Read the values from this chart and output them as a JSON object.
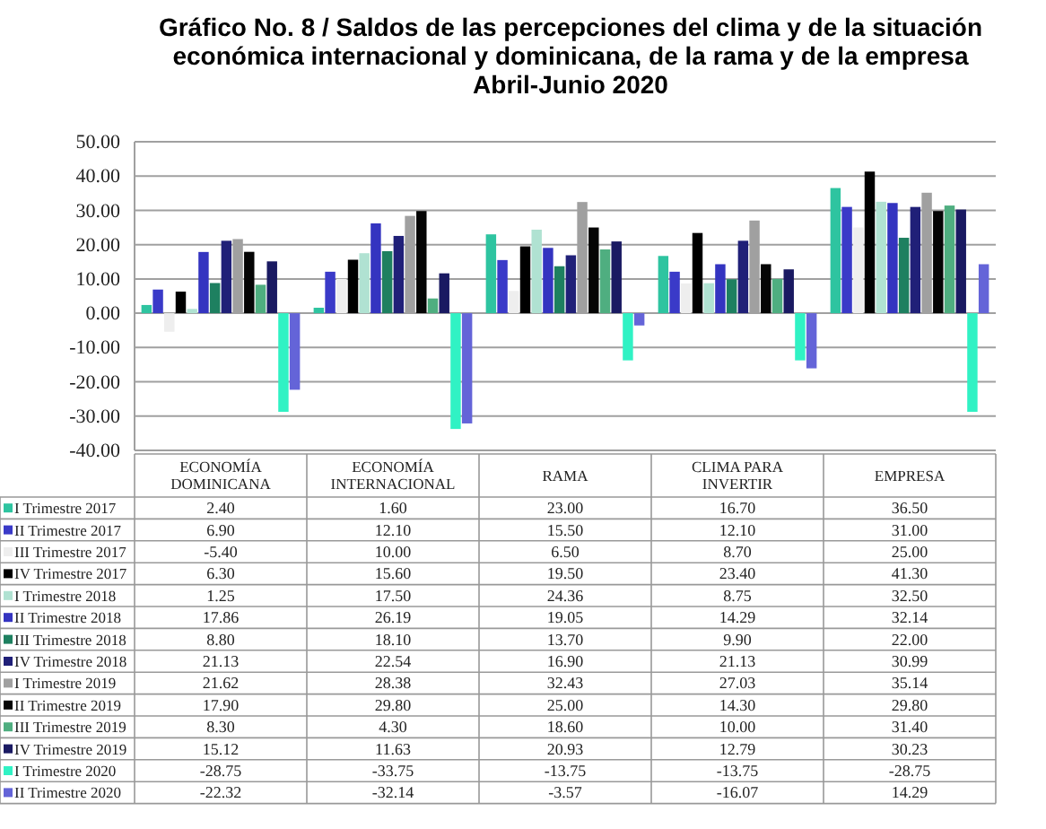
{
  "chart_data": {
    "type": "bar",
    "title": "Gráfico No. 8 / Saldos de las percepciones del clima y de la situación\neconómica internacional y dominicana, de la rama y de la empresa\nAbril-Junio 2020",
    "categories": [
      "ECONOMÍA\nDOMINICANA",
      "ECONOMÍA\nINTERNACIONAL",
      "RAMA",
      "CLIMA PARA\nINVERTIR",
      "EMPRESA"
    ],
    "series": [
      {
        "name": "I Trimestre 2017",
        "color": "#2ec4a0",
        "values": [
          2.4,
          1.6,
          23.0,
          16.7,
          36.5
        ],
        "value_labels": [
          "2.40",
          "1.60",
          "23.00",
          "16.70",
          "36.50"
        ]
      },
      {
        "name": "II Trimestre 2017",
        "color": "#3a3ac8",
        "values": [
          6.9,
          12.1,
          15.5,
          12.1,
          31.0
        ],
        "value_labels": [
          "6.90",
          "12.10",
          "15.50",
          "12.10",
          "31.00"
        ]
      },
      {
        "name": "III Trimestre 2017",
        "color": "#eeeeee",
        "values": [
          -5.4,
          10.0,
          6.5,
          8.7,
          25.0
        ],
        "value_labels": [
          "-5.40",
          "10.00",
          "6.50",
          "8.70",
          "25.00"
        ]
      },
      {
        "name": "IV Trimestre 2017",
        "color": "#000000",
        "values": [
          6.3,
          15.6,
          19.5,
          23.4,
          41.3
        ],
        "value_labels": [
          "6.30",
          "15.60",
          "19.50",
          "23.40",
          "41.30"
        ]
      },
      {
        "name": "I Trimestre 2018",
        "color": "#b0e2d2",
        "values": [
          1.25,
          17.5,
          24.36,
          8.75,
          32.5
        ],
        "value_labels": [
          "1.25",
          "17.50",
          "24.36",
          "8.75",
          "32.50"
        ]
      },
      {
        "name": "II Trimestre 2018",
        "color": "#3434c0",
        "values": [
          17.86,
          26.19,
          19.05,
          14.29,
          32.14
        ],
        "value_labels": [
          "17.86",
          "26.19",
          "19.05",
          "14.29",
          "32.14"
        ]
      },
      {
        "name": "III Trimestre 2018",
        "color": "#1e8060",
        "values": [
          8.8,
          18.1,
          13.7,
          9.9,
          22.0
        ],
        "value_labels": [
          "8.80",
          "18.10",
          "13.70",
          "9.90",
          "22.00"
        ]
      },
      {
        "name": "IV Trimestre 2018",
        "color": "#202078",
        "values": [
          21.13,
          22.54,
          16.9,
          21.13,
          30.99
        ],
        "value_labels": [
          "21.13",
          "22.54",
          "16.90",
          "21.13",
          "30.99"
        ]
      },
      {
        "name": "I Trimestre 2019",
        "color": "#a0a0a0",
        "values": [
          21.62,
          28.38,
          32.43,
          27.03,
          35.14
        ],
        "value_labels": [
          "21.62",
          "28.38",
          "32.43",
          "27.03",
          "35.14"
        ]
      },
      {
        "name": "II Trimestre 2019",
        "color": "#050505",
        "values": [
          17.9,
          29.8,
          25.0,
          14.3,
          29.8
        ],
        "value_labels": [
          "17.90",
          "29.80",
          "25.00",
          "14.30",
          "29.80"
        ]
      },
      {
        "name": "III Trimestre 2019",
        "color": "#4fae80",
        "values": [
          8.3,
          4.3,
          18.6,
          10.0,
          31.4
        ],
        "value_labels": [
          "8.30",
          "4.30",
          "18.60",
          "10.00",
          "31.40"
        ]
      },
      {
        "name": "IV Trimestre 2019",
        "color": "#1a1a62",
        "values": [
          15.12,
          11.63,
          20.93,
          12.79,
          30.23
        ],
        "value_labels": [
          "15.12",
          "11.63",
          "20.93",
          "12.79",
          "30.23"
        ]
      },
      {
        "name": "I Trimestre 2020",
        "color": "#30f2c4",
        "values": [
          -28.75,
          -33.75,
          -13.75,
          -13.75,
          -28.75
        ],
        "value_labels": [
          "-28.75",
          "-33.75",
          "-13.75",
          "-13.75",
          "-28.75"
        ]
      },
      {
        "name": "II Trimestre 2020",
        "color": "#6464d8",
        "values": [
          -22.32,
          -32.14,
          -3.57,
          -16.07,
          14.29
        ],
        "value_labels": [
          "-22.32",
          "-32.14",
          "-3.57",
          "-16.07",
          "14.29"
        ]
      }
    ],
    "ylim": [
      -40,
      50
    ],
    "yticks": [
      {
        "value": -40,
        "label": "-40.00"
      },
      {
        "value": -30,
        "label": "-30.00"
      },
      {
        "value": -20,
        "label": "-20.00"
      },
      {
        "value": -10,
        "label": "-10.00"
      },
      {
        "value": 0,
        "label": "0.00"
      },
      {
        "value": 10,
        "label": "10.00"
      },
      {
        "value": 20,
        "label": "20.00"
      },
      {
        "value": 30,
        "label": "30.00"
      },
      {
        "value": 40,
        "label": "40.00"
      },
      {
        "value": 50,
        "label": "50.00"
      }
    ],
    "grid": "y",
    "legend": "bottom"
  }
}
